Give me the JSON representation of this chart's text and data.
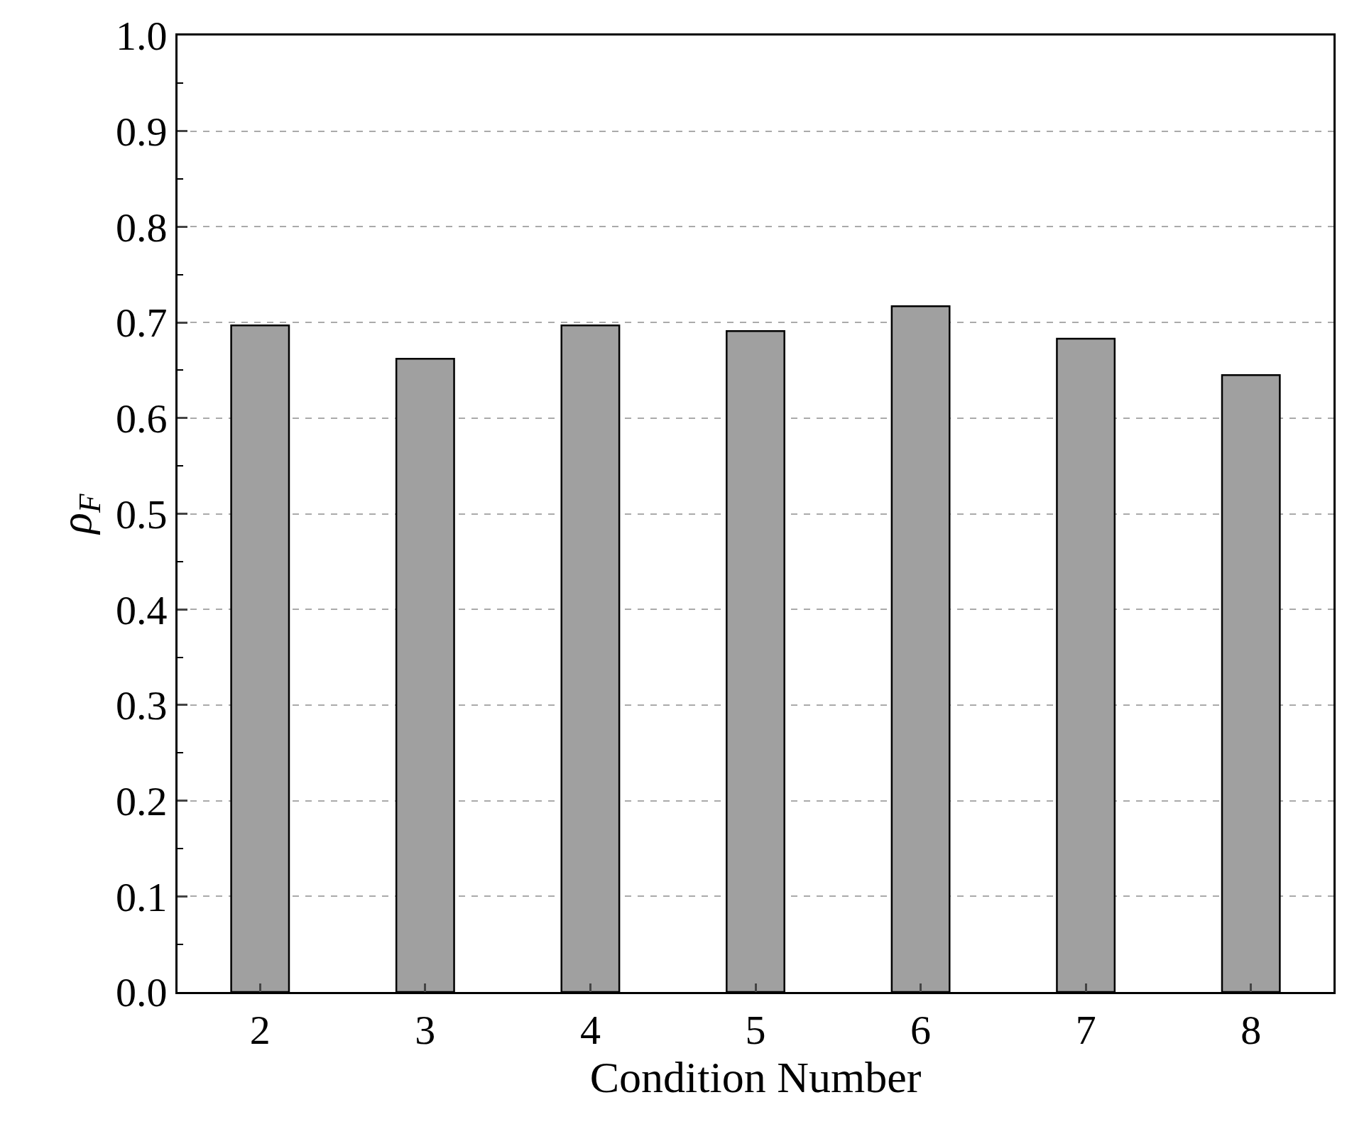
{
  "chart_data": {
    "type": "bar",
    "xlabel": "Condition Number",
    "ylabel": "ρ$_{F}$",
    "categories": [
      "2",
      "3",
      "4",
      "5",
      "6",
      "7",
      "8"
    ],
    "values": [
      0.697,
      0.662,
      0.697,
      0.691,
      0.717,
      0.683,
      0.645
    ],
    "color": "#a0a0a0",
    "ylim": [
      0,
      1
    ],
    "yticks": [
      {
        "value": 0,
        "label": "0.0"
      },
      0.1,
      0.2,
      0.3,
      0.4,
      0.5,
      0.6,
      0.7,
      0.8,
      0.9,
      {
        "value": 1,
        "label": "1.0"
      }
    ],
    "grid": "y"
  }
}
